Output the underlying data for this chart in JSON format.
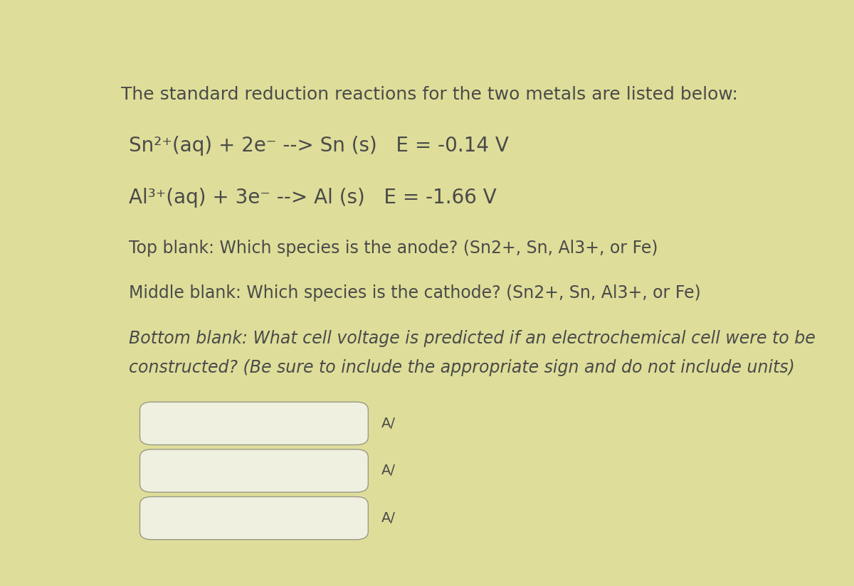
{
  "background_color": "#dede9a",
  "text_color": "#4a4a4a",
  "title_line": "The standard reduction reactions for the two metals are listed below:",
  "reaction1_main": "Sn²⁺(aq) + 2e⁻ --> Sn (s)",
  "reaction1_e": "   E = -0.14 V",
  "reaction2_main": "Al³⁺(aq) + 3e⁻ --> Al (s)",
  "reaction2_e": "   E = -1.66 V",
  "question1": "Top blank: Which species is the anode? (Sn2+, Sn, Al3+, or Fe)",
  "question2": "Middle blank: Which species is the cathode? (Sn2+, Sn, Al3+, or Fe)",
  "question3_line1": "Bottom blank: What cell voltage is predicted if an electrochemical cell were to be",
  "question3_line2": "constructed? (Be sure to include the appropriate sign and do not include units)",
  "box_color": "#f0f0e0",
  "box_edge_color": "#999988",
  "font_size_title": 18,
  "font_size_reactions": 20,
  "font_size_questions": 17,
  "font_size_symbol": 14,
  "symbol_char": "A/"
}
